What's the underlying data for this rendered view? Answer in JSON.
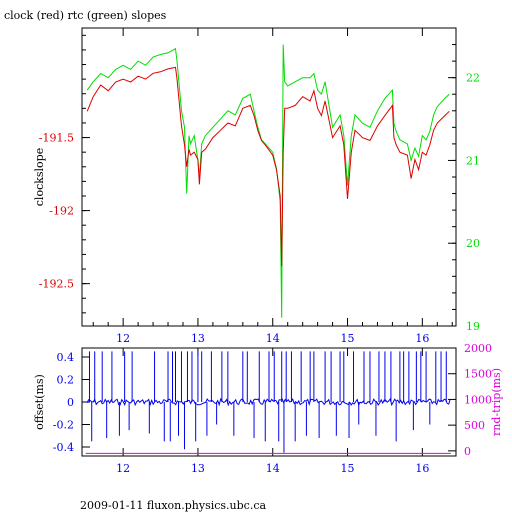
{
  "footer": "2009-01-11 fluxon.physics.ubc.ca",
  "colors": {
    "clock": "#dd0000",
    "rtc": "#00dd00",
    "offset": "#0000ee",
    "roundtrip": "#dd00dd",
    "axis": "#000000"
  },
  "chart_data": [
    {
      "type": "line",
      "title": "clock (red) rtc (green) slopes",
      "ylabel": "clockslope",
      "xlim": [
        11.45,
        16.45
      ],
      "x_ticks": [
        12,
        13,
        14,
        15,
        16
      ],
      "x_tick_labels": [
        "12",
        "13",
        "14",
        "15",
        "16"
      ],
      "ylim_left": [
        -192.79,
        -190.75
      ],
      "y_ticks_left": [
        -191.5,
        -192,
        -192.5
      ],
      "y_tick_labels_left": [
        "-191.5",
        "-192",
        "-192.5"
      ],
      "ylim_right": [
        19.0,
        22.6
      ],
      "y_ticks_right": [
        22,
        21,
        20,
        19
      ],
      "y_tick_labels_right": [
        "22",
        "21",
        "20",
        "19"
      ],
      "series": [
        {
          "axis": "left",
          "x": [
            11.52,
            11.6,
            11.7,
            11.8,
            11.9,
            12.0,
            12.1,
            12.2,
            12.3,
            12.4,
            12.5,
            12.6,
            12.7,
            12.72,
            12.78,
            12.82,
            12.85,
            12.88,
            12.9,
            12.95,
            13.0,
            13.02,
            13.05,
            13.1,
            13.2,
            13.3,
            13.4,
            13.5,
            13.6,
            13.7,
            13.75,
            13.8,
            13.85,
            13.9,
            14.0,
            14.05,
            14.1,
            14.12,
            14.14,
            14.16,
            14.2,
            14.3,
            14.4,
            14.5,
            14.55,
            14.6,
            14.65,
            14.7,
            14.8,
            14.9,
            14.95,
            15.0,
            15.05,
            15.1,
            15.2,
            15.3,
            15.4,
            15.5,
            15.6,
            15.62,
            15.65,
            15.7,
            15.8,
            15.85,
            15.9,
            15.95,
            16.0,
            16.05,
            16.1,
            16.15,
            16.2,
            16.3,
            16.36
          ],
          "y": [
            -191.32,
            -191.22,
            -191.14,
            -191.18,
            -191.12,
            -191.1,
            -191.12,
            -191.08,
            -191.1,
            -191.06,
            -191.05,
            -191.03,
            -191.02,
            -191.1,
            -191.42,
            -191.55,
            -191.7,
            -191.58,
            -191.62,
            -191.6,
            -191.65,
            -191.82,
            -191.6,
            -191.58,
            -191.5,
            -191.45,
            -191.4,
            -191.42,
            -191.3,
            -191.28,
            -191.35,
            -191.45,
            -191.52,
            -191.55,
            -191.62,
            -191.72,
            -191.9,
            -192.38,
            -191.6,
            -191.3,
            -191.3,
            -191.28,
            -191.22,
            -191.25,
            -191.18,
            -191.3,
            -191.35,
            -191.25,
            -191.5,
            -191.42,
            -191.55,
            -191.92,
            -191.6,
            -191.45,
            -191.5,
            -191.52,
            -191.42,
            -191.35,
            -191.28,
            -191.5,
            -191.55,
            -191.6,
            -191.62,
            -191.78,
            -191.65,
            -191.72,
            -191.6,
            -191.62,
            -191.55,
            -191.45,
            -191.4,
            -191.35,
            -191.32
          ]
        },
        {
          "axis": "right",
          "x": [
            11.52,
            11.6,
            11.7,
            11.8,
            11.9,
            12.0,
            12.1,
            12.2,
            12.3,
            12.4,
            12.5,
            12.6,
            12.7,
            12.72,
            12.78,
            12.82,
            12.85,
            12.88,
            12.9,
            12.95,
            13.0,
            13.02,
            13.05,
            13.1,
            13.2,
            13.3,
            13.4,
            13.5,
            13.6,
            13.7,
            13.75,
            13.8,
            13.85,
            13.9,
            14.0,
            14.05,
            14.1,
            14.12,
            14.14,
            14.16,
            14.2,
            14.3,
            14.4,
            14.5,
            14.55,
            14.6,
            14.65,
            14.7,
            14.8,
            14.9,
            14.95,
            15.0,
            15.05,
            15.1,
            15.2,
            15.3,
            15.4,
            15.5,
            15.6,
            15.62,
            15.65,
            15.7,
            15.8,
            15.85,
            15.9,
            15.95,
            16.0,
            16.05,
            16.1,
            16.15,
            16.2,
            16.3,
            16.36
          ],
          "y": [
            21.85,
            21.95,
            22.05,
            22.0,
            22.1,
            22.15,
            22.1,
            22.2,
            22.15,
            22.25,
            22.28,
            22.3,
            22.35,
            22.2,
            21.6,
            21.4,
            20.6,
            21.3,
            21.2,
            21.3,
            21.0,
            20.8,
            21.2,
            21.3,
            21.4,
            21.5,
            21.6,
            21.55,
            21.75,
            21.8,
            21.6,
            21.4,
            21.25,
            21.2,
            21.1,
            20.9,
            20.5,
            19.1,
            22.4,
            21.95,
            21.9,
            21.95,
            22.0,
            22.0,
            22.05,
            21.85,
            21.8,
            21.95,
            21.4,
            21.55,
            21.3,
            20.7,
            21.3,
            21.55,
            21.45,
            21.4,
            21.6,
            21.75,
            21.85,
            21.45,
            21.35,
            21.25,
            21.2,
            21.0,
            21.15,
            21.05,
            21.3,
            21.25,
            21.35,
            21.55,
            21.65,
            21.75,
            21.8
          ]
        }
      ]
    },
    {
      "type": "line",
      "ylabel": "offset(ms)",
      "ylabel_right": "rnd-trip(ms)",
      "xlim": [
        11.45,
        16.45
      ],
      "x_ticks": [
        12,
        13,
        14,
        15,
        16
      ],
      "x_tick_labels": [
        "12",
        "13",
        "14",
        "15",
        "16"
      ],
      "ylim_left": [
        -0.48,
        0.48
      ],
      "y_ticks_left": [
        0.4,
        0.2,
        0,
        -0.2,
        -0.4
      ],
      "y_tick_labels_left": [
        "0.4",
        "0.2",
        "0",
        "-0.2",
        "-0.4"
      ],
      "ylim_right": [
        -100,
        2000
      ],
      "y_ticks_right": [
        2000,
        1500,
        1000,
        500,
        0
      ],
      "y_tick_labels_right": [
        "2000",
        "1500",
        "1000",
        "500",
        "0"
      ],
      "series": [
        {
          "axis": "left",
          "baseline": 0.0,
          "x_range": [
            11.5,
            16.38
          ],
          "spike_x": [
            11.55,
            11.58,
            11.62,
            11.72,
            11.78,
            11.85,
            11.95,
            12.02,
            12.08,
            12.12,
            12.35,
            12.42,
            12.55,
            12.6,
            12.63,
            12.66,
            12.7,
            12.74,
            12.78,
            12.82,
            12.86,
            12.92,
            12.97,
            13.0,
            13.05,
            13.12,
            13.18,
            13.25,
            13.32,
            13.4,
            13.48,
            13.6,
            13.66,
            13.75,
            13.82,
            13.9,
            13.95,
            14.02,
            14.08,
            14.12,
            14.15,
            14.18,
            14.25,
            14.3,
            14.38,
            14.45,
            14.5,
            14.55,
            14.62,
            14.7,
            14.78,
            14.85,
            14.9,
            14.95,
            15.02,
            15.08,
            15.15,
            15.22,
            15.3,
            15.38,
            15.42,
            15.5,
            15.58,
            15.65,
            15.7,
            15.75,
            15.82,
            15.88,
            15.92,
            15.98,
            16.05,
            16.1,
            16.18,
            16.25,
            16.32
          ],
          "spike_y": [
            0.45,
            -0.35,
            0.45,
            0.45,
            -0.32,
            0.45,
            -0.3,
            0.45,
            -0.25,
            0.45,
            -0.28,
            0.45,
            -0.35,
            0.45,
            -0.35,
            0.45,
            0.45,
            -0.3,
            0.45,
            -0.42,
            0.45,
            0.45,
            -0.35,
            0.45,
            0.45,
            -0.3,
            0.45,
            -0.2,
            0.45,
            0.45,
            -0.3,
            0.45,
            0.45,
            -0.32,
            0.45,
            -0.35,
            0.45,
            0.45,
            -0.35,
            0.45,
            -0.45,
            0.45,
            0.45,
            -0.35,
            0.45,
            -0.3,
            0.45,
            0.45,
            -0.32,
            0.45,
            0.45,
            -0.3,
            0.45,
            0.45,
            -0.32,
            0.45,
            -0.2,
            0.45,
            0.45,
            -0.3,
            0.45,
            0.45,
            0.45,
            -0.35,
            0.45,
            0.45,
            0.45,
            -0.25,
            0.45,
            0.45,
            0.45,
            -0.2,
            0.45,
            0.45,
            0.45
          ]
        },
        {
          "axis": "right",
          "x": [
            11.5,
            16.38
          ],
          "y": [
            -50,
            -50
          ]
        }
      ]
    }
  ]
}
